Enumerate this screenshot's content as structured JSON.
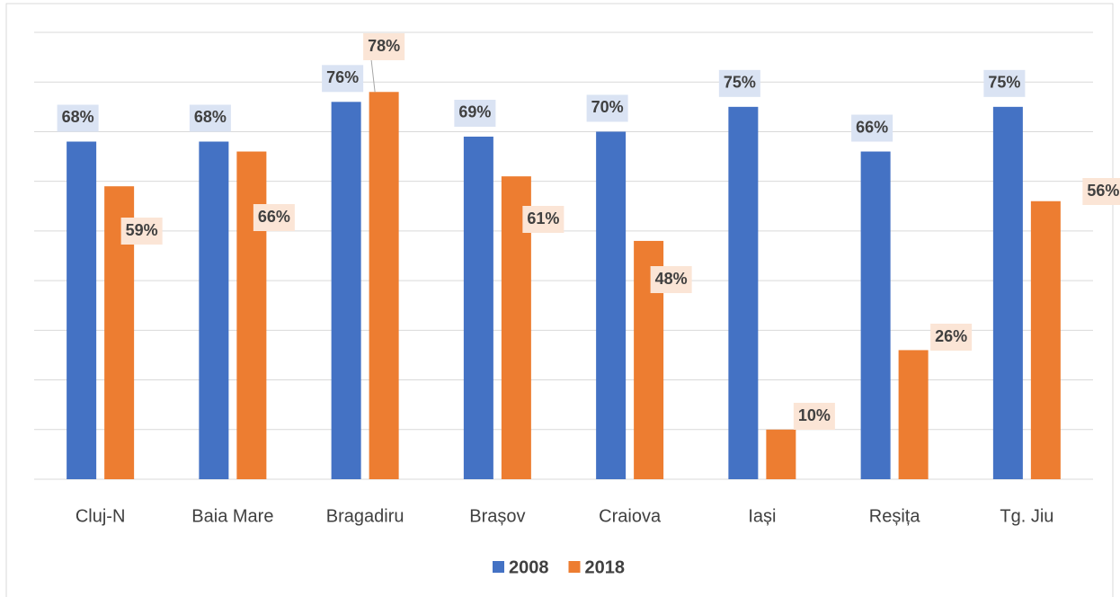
{
  "chart_data": {
    "type": "bar",
    "categories": [
      "Cluj-N",
      "Baia Mare",
      "Bragadiru",
      "Brașov",
      "Craiova",
      "Iași",
      "Reșița",
      "Tg. Jiu"
    ],
    "series": [
      {
        "name": "2008",
        "color": "#4472c4",
        "values": [
          68,
          68,
          76,
          69,
          70,
          75,
          66,
          75
        ],
        "value_labels": [
          "68%",
          "68%",
          "76%",
          "69%",
          "70%",
          "75%",
          "66%",
          "75%"
        ],
        "label_color": "#dae3f3"
      },
      {
        "name": "2018",
        "color": "#ed7d31",
        "values": [
          59,
          66,
          78,
          61,
          48,
          10,
          26,
          56
        ],
        "value_labels": [
          "59%",
          "66%",
          "78%",
          "61%",
          "48%",
          "10%",
          "26%",
          "56%"
        ],
        "label_color": "#fbe5d6"
      }
    ],
    "ylim": [
      0,
      90
    ],
    "yticks": [
      0,
      10,
      20,
      30,
      40,
      50,
      60,
      70,
      80,
      90
    ],
    "grid": true,
    "legend": "bottom"
  }
}
